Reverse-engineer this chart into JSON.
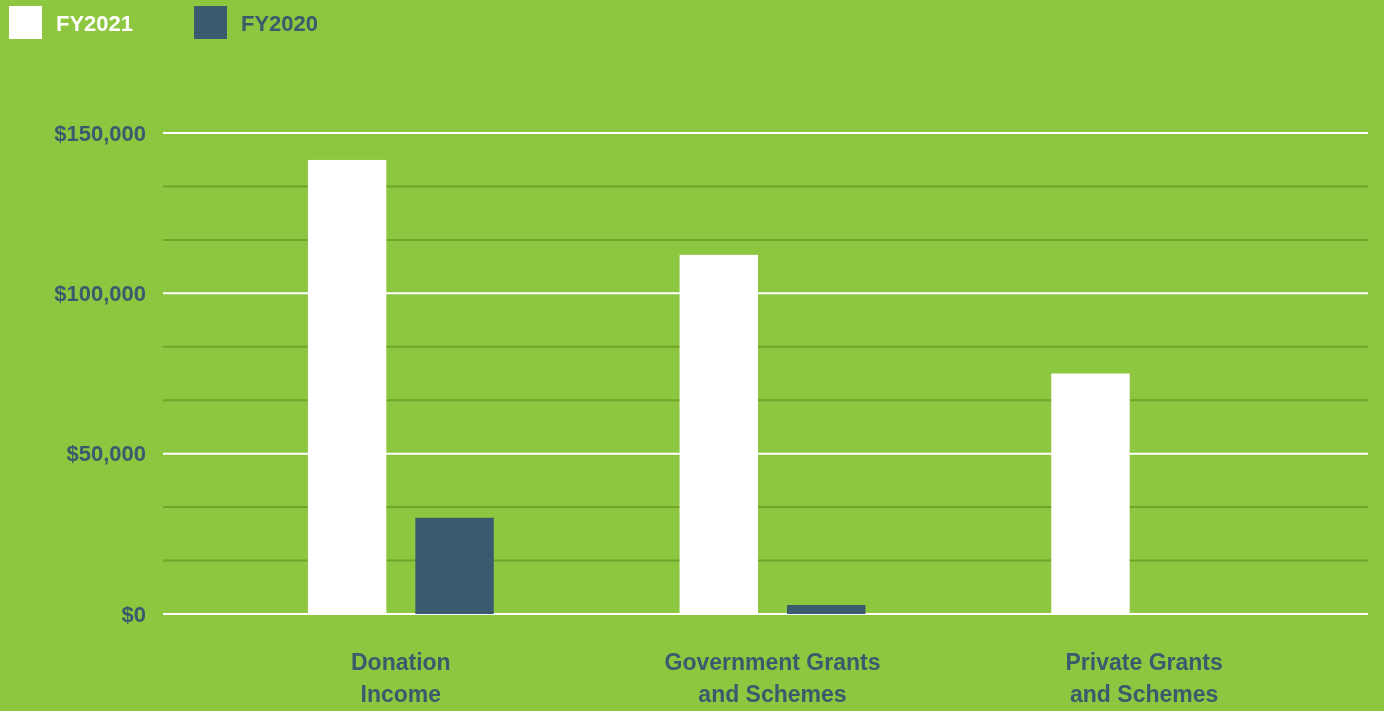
{
  "chart_data": {
    "type": "bar",
    "categories": [
      "Donation\nIncome",
      "Government Grants\nand Schemes",
      "Private Grants\nand Schemes"
    ],
    "series": [
      {
        "name": "FY2021",
        "color": "#ffffff",
        "values": [
          141600,
          112000,
          75000
        ]
      },
      {
        "name": "FY2020",
        "color": "#3a5a6e",
        "values": [
          30000,
          2800,
          0
        ]
      }
    ],
    "ylim": [
      0,
      150000
    ],
    "yticks": [
      {
        "value": 0,
        "label": "$0"
      },
      {
        "value": 16667,
        "label": null
      },
      {
        "value": 33333,
        "label": null
      },
      {
        "value": 50000,
        "label": "$50,000"
      },
      {
        "value": 66667,
        "label": null
      },
      {
        "value": 83333,
        "label": null
      },
      {
        "value": 100000,
        "label": "$100,000"
      },
      {
        "value": 116667,
        "label": null
      },
      {
        "value": 133333,
        "label": null
      },
      {
        "value": 150000,
        "label": "$150,000"
      }
    ],
    "grid": "y",
    "legend": "top left"
  }
}
